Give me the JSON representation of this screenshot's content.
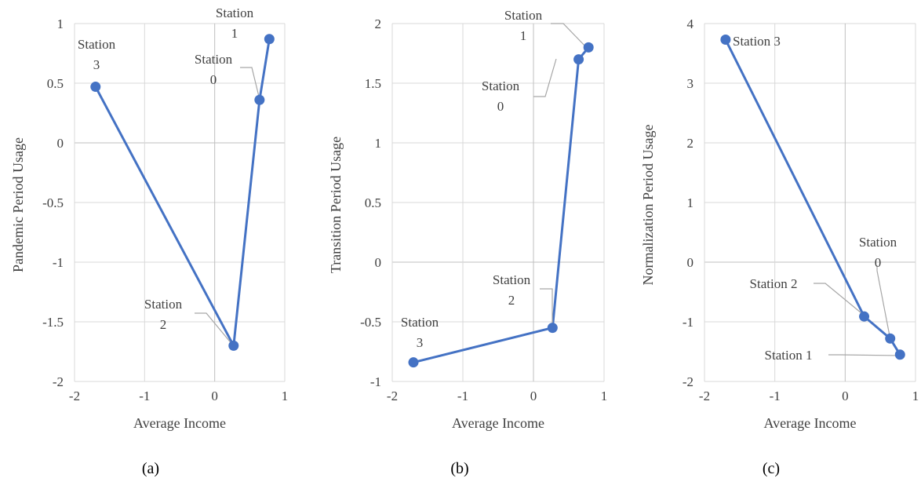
{
  "colors": {
    "series": "#4472C4",
    "grid": "#d9d9d9",
    "leader": "#a6a6a6",
    "text": "#404040"
  },
  "chart_data": [
    {
      "type": "line",
      "caption": "(a)",
      "xlabel": "Average Income",
      "ylabel": "Pandemic Period Usage",
      "xlim": [
        -2,
        1
      ],
      "ylim": [
        -2,
        1
      ],
      "xticks": [
        -2,
        -1,
        0,
        1
      ],
      "yticks": [
        -2,
        -1.5,
        -1,
        -0.5,
        0,
        0.5,
        1
      ],
      "grid": true,
      "series": [
        {
          "points": [
            {
              "label": "Station 3",
              "x": -1.7,
              "y": 0.47
            },
            {
              "label": "Station 2",
              "x": 0.27,
              "y": -1.7
            },
            {
              "label": "Station 0",
              "x": 0.64,
              "y": 0.36
            },
            {
              "label": "Station 1",
              "x": 0.78,
              "y": 0.87
            }
          ]
        }
      ]
    },
    {
      "type": "line",
      "caption": "(b)",
      "xlabel": "Average Income",
      "ylabel": "Transition Period Usage",
      "xlim": [
        -2,
        1
      ],
      "ylim": [
        -1,
        2
      ],
      "xticks": [
        -2,
        -1,
        0,
        1
      ],
      "yticks": [
        -1,
        -0.5,
        0,
        0.5,
        1,
        1.5,
        2
      ],
      "grid": true,
      "series": [
        {
          "points": [
            {
              "label": "Station 3",
              "x": -1.7,
              "y": -0.84
            },
            {
              "label": "Station 2",
              "x": 0.27,
              "y": -0.55
            },
            {
              "label": "Station 0",
              "x": 0.64,
              "y": 1.7
            },
            {
              "label": "Station 1",
              "x": 0.78,
              "y": 1.8
            }
          ]
        }
      ]
    },
    {
      "type": "line",
      "caption": "(c)",
      "xlabel": "Average Income",
      "ylabel": "Normalization Period Usage",
      "xlim": [
        -2,
        1
      ],
      "ylim": [
        -2,
        4
      ],
      "xticks": [
        -2,
        -1,
        0,
        1
      ],
      "yticks": [
        -2,
        -1,
        0,
        1,
        2,
        3,
        4
      ],
      "grid": true,
      "series": [
        {
          "points": [
            {
              "label": "Station 3",
              "x": -1.7,
              "y": 3.73
            },
            {
              "label": "Station 2",
              "x": 0.27,
              "y": -0.91
            },
            {
              "label": "Station 0",
              "x": 0.64,
              "y": -1.28
            },
            {
              "label": "Station 1",
              "x": 0.78,
              "y": -1.55
            }
          ]
        }
      ]
    }
  ]
}
